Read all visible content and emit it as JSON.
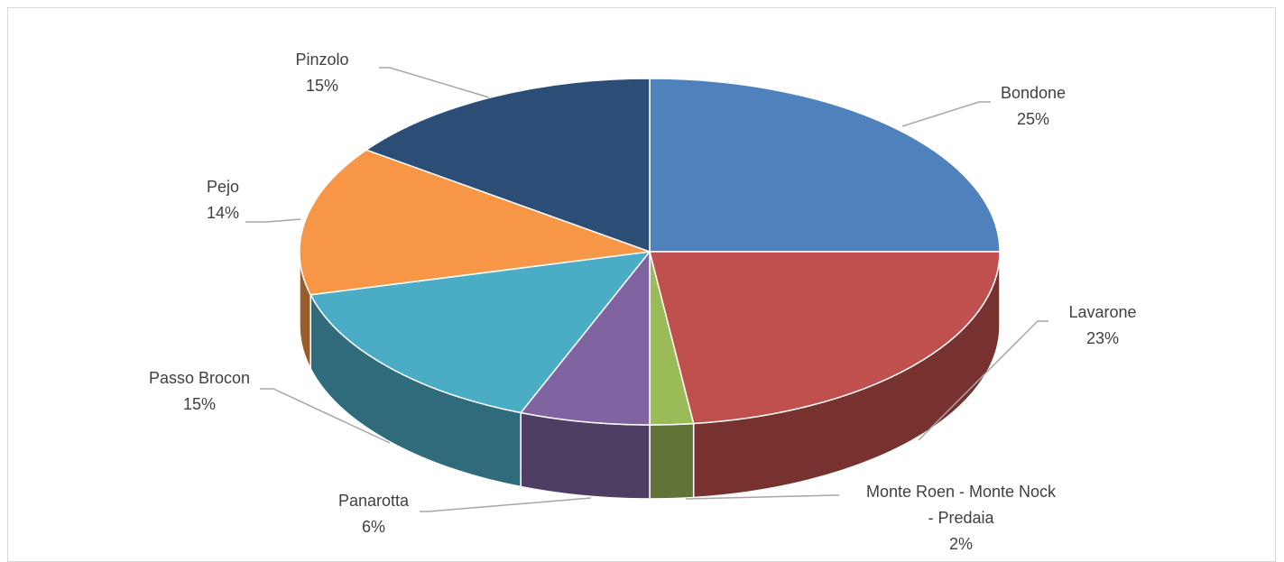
{
  "chart_data": {
    "type": "pie",
    "style": "3d",
    "title": "",
    "slices": [
      {
        "label": "Bondone",
        "value": 25,
        "percent_label": "25%",
        "color": "#4f81bd"
      },
      {
        "label": "Lavarone",
        "value": 23,
        "percent_label": "23%",
        "color": "#c0504d"
      },
      {
        "label": "Monte Roen - Monte Nock - Predaia",
        "value": 2,
        "percent_label": "2%",
        "color": "#9bbb59"
      },
      {
        "label": "Panarotta",
        "value": 6,
        "percent_label": "6%",
        "color": "#8064a2"
      },
      {
        "label": "Passo Brocon",
        "value": 15,
        "percent_label": "15%",
        "color": "#4bacc6"
      },
      {
        "label": "Pejo",
        "value": 14,
        "percent_label": "14%",
        "color": "#f79646"
      },
      {
        "label": "Pinzolo",
        "value": 15,
        "percent_label": "15%",
        "color": "#2c4d75"
      }
    ],
    "legend": "none"
  }
}
